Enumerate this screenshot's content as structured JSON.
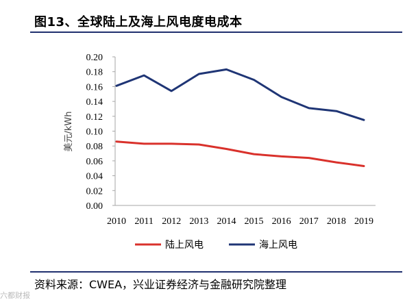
{
  "header": {
    "title": "图13、全球陆上及海上风电度电成本"
  },
  "footer": {
    "source": "资料来源：CWEA，兴业证券经济与金融研究院整理"
  },
  "watermark": {
    "text": "六都财报"
  },
  "colors": {
    "onshore": "#d9312b",
    "offshore": "#1f3575",
    "rule": "#1f2f6e",
    "axis": "#a6a6a6"
  },
  "chart_data": {
    "type": "line",
    "title": "",
    "xlabel": "",
    "ylabel": "美元/kWh",
    "x": [
      "2010",
      "2011",
      "2012",
      "2013",
      "2014",
      "2015",
      "2016",
      "2017",
      "2018",
      "2019"
    ],
    "ylim": [
      0,
      0.2
    ],
    "yticks": [
      "0.00",
      "0.02",
      "0.04",
      "0.06",
      "0.08",
      "0.10",
      "0.12",
      "0.14",
      "0.16",
      "0.18",
      "0.20"
    ],
    "grid": false,
    "legend_position": "bottom",
    "series": [
      {
        "name": "陆上风电",
        "color": "#d9312b",
        "values": [
          0.086,
          0.083,
          0.083,
          0.082,
          0.076,
          0.069,
          0.066,
          0.064,
          0.058,
          0.053
        ]
      },
      {
        "name": "海上风电",
        "color": "#1f3575",
        "values": [
          0.161,
          0.175,
          0.154,
          0.177,
          0.183,
          0.169,
          0.146,
          0.131,
          0.127,
          0.115
        ]
      }
    ]
  }
}
